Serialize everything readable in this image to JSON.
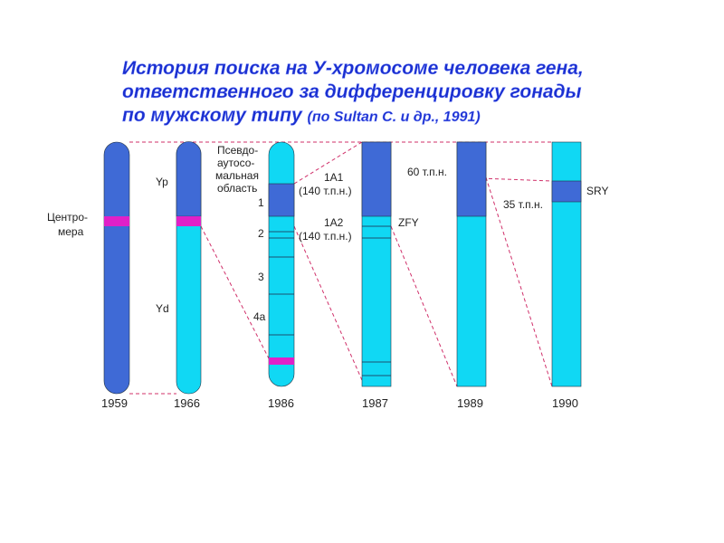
{
  "title": {
    "lines": [
      "История поиска на У-хромосоме человека гена,",
      "ответственного за дифференцировку гонады",
      "по мужскому типу"
    ],
    "citation": "(по Sultan C. и др., 1991)"
  },
  "labels": {
    "centromere": [
      "Центро-",
      "мера"
    ],
    "yp": "Yp",
    "yd": "Yd",
    "pseudo": [
      "Псевдо-",
      "аутосо-",
      "мальная",
      "область"
    ],
    "regions": [
      "1",
      "2",
      "3",
      "4a"
    ],
    "a1": [
      "1A1",
      "(140 т.п.н.)"
    ],
    "a2": [
      "1A2",
      "(140 т.п.н.)"
    ],
    "zfy": "ZFY",
    "kb60": "60 т.п.н.",
    "kb35": "35 т.п.н.",
    "sry": "SRY"
  },
  "years": [
    "1959",
    "1966",
    "1986",
    "1987",
    "1989",
    "1990"
  ]
}
